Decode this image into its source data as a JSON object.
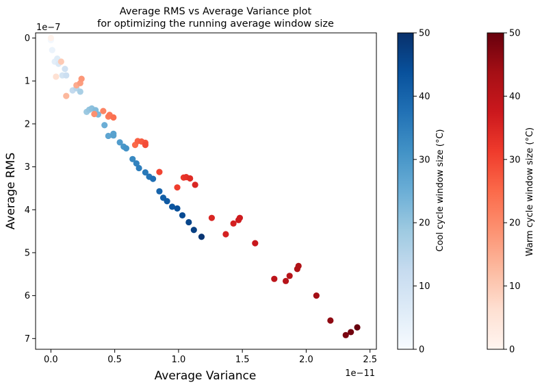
{
  "chart_data": {
    "type": "scatter",
    "title_line1": "Average RMS vs Average Variance plot",
    "title_line2": "for optimizing the running average window size",
    "xlabel": "Average Variance",
    "ylabel": "Average RMS",
    "x_multiplier": "1e−11",
    "y_multiplier": "1e−7",
    "xlim": [
      -0.12,
      2.55
    ],
    "ylim": [
      -0.12,
      7.25
    ],
    "y_inverted": true,
    "xticks": [
      0.0,
      0.5,
      1.0,
      1.5,
      2.0,
      2.5
    ],
    "xtick_labels": [
      "0.0",
      "0.5",
      "1.0",
      "1.5",
      "2.0",
      "2.5"
    ],
    "yticks": [
      0,
      1,
      2,
      3,
      4,
      5,
      6,
      7
    ],
    "ytick_labels": [
      "0",
      "1",
      "2",
      "3",
      "4",
      "5",
      "6",
      "7"
    ],
    "colorbars": [
      {
        "label": "Cool cycle window size (°C)",
        "cmap": "Blues",
        "range": [
          0,
          50
        ],
        "ticks": [
          0,
          10,
          20,
          30,
          40,
          50
        ],
        "tick_labels": [
          "0",
          "10",
          "20",
          "30",
          "40",
          "50"
        ],
        "color_stops": [
          "#f7fbff",
          "#deebf7",
          "#c6dbef",
          "#9ecae1",
          "#6baed6",
          "#4292c6",
          "#2171b5",
          "#08519c",
          "#08306b"
        ]
      },
      {
        "label": "Warm cycle window size (°C)",
        "cmap": "Reds",
        "range": [
          0,
          50
        ],
        "ticks": [
          0,
          10,
          20,
          30,
          40,
          50
        ],
        "tick_labels": [
          "0",
          "10",
          "20",
          "30",
          "40",
          "50"
        ],
        "color_stops": [
          "#fff5f0",
          "#fee0d2",
          "#fcbba1",
          "#fc9272",
          "#fb6a4a",
          "#ef3b2c",
          "#cb181d",
          "#a50f15",
          "#67000d"
        ]
      }
    ],
    "series": [
      {
        "cmap": "Blues",
        "points": [
          {
            "x": 0.0,
            "y": 0.05,
            "c": 1
          },
          {
            "x": 0.01,
            "y": 0.28,
            "c": 3
          },
          {
            "x": 0.03,
            "y": 0.55,
            "c": 5
          },
          {
            "x": 0.05,
            "y": 0.48,
            "c": 6
          },
          {
            "x": 0.06,
            "y": 0.6,
            "c": 7
          },
          {
            "x": 0.09,
            "y": 0.87,
            "c": 9
          },
          {
            "x": 0.11,
            "y": 0.72,
            "c": 10
          },
          {
            "x": 0.12,
            "y": 0.87,
            "c": 11
          },
          {
            "x": 0.17,
            "y": 1.22,
            "c": 13
          },
          {
            "x": 0.2,
            "y": 1.17,
            "c": 15
          },
          {
            "x": 0.23,
            "y": 1.25,
            "c": 17
          },
          {
            "x": 0.28,
            "y": 1.72,
            "c": 19
          },
          {
            "x": 0.3,
            "y": 1.67,
            "c": 20
          },
          {
            "x": 0.32,
            "y": 1.64,
            "c": 21
          },
          {
            "x": 0.35,
            "y": 1.68,
            "c": 22
          },
          {
            "x": 0.37,
            "y": 1.78,
            "c": 23
          },
          {
            "x": 0.42,
            "y": 2.03,
            "c": 25
          },
          {
            "x": 0.45,
            "y": 2.28,
            "c": 27
          },
          {
            "x": 0.49,
            "y": 2.27,
            "c": 28
          },
          {
            "x": 0.49,
            "y": 2.23,
            "c": 28
          },
          {
            "x": 0.54,
            "y": 2.43,
            "c": 29
          },
          {
            "x": 0.57,
            "y": 2.53,
            "c": 30
          },
          {
            "x": 0.59,
            "y": 2.57,
            "c": 31
          },
          {
            "x": 0.64,
            "y": 2.82,
            "c": 33
          },
          {
            "x": 0.67,
            "y": 2.92,
            "c": 34
          },
          {
            "x": 0.69,
            "y": 3.03,
            "c": 35
          },
          {
            "x": 0.74,
            "y": 3.13,
            "c": 36
          },
          {
            "x": 0.77,
            "y": 3.23,
            "c": 37
          },
          {
            "x": 0.8,
            "y": 3.28,
            "c": 38
          },
          {
            "x": 0.85,
            "y": 3.57,
            "c": 40
          },
          {
            "x": 0.88,
            "y": 3.72,
            "c": 41
          },
          {
            "x": 0.91,
            "y": 3.8,
            "c": 42
          },
          {
            "x": 0.95,
            "y": 3.93,
            "c": 43
          },
          {
            "x": 0.99,
            "y": 3.97,
            "c": 44
          },
          {
            "x": 1.03,
            "y": 4.13,
            "c": 45
          },
          {
            "x": 1.08,
            "y": 4.29,
            "c": 46
          },
          {
            "x": 1.12,
            "y": 4.47,
            "c": 47
          },
          {
            "x": 1.18,
            "y": 4.63,
            "c": 49
          }
        ]
      },
      {
        "cmap": "Reds",
        "points": [
          {
            "x": 0.0,
            "y": 0.0,
            "c": 1
          },
          {
            "x": 0.04,
            "y": 0.9,
            "c": 6
          },
          {
            "x": 0.08,
            "y": 0.55,
            "c": 10
          },
          {
            "x": 0.12,
            "y": 1.35,
            "c": 13
          },
          {
            "x": 0.2,
            "y": 1.1,
            "c": 15
          },
          {
            "x": 0.23,
            "y": 1.05,
            "c": 17
          },
          {
            "x": 0.24,
            "y": 0.95,
            "c": 18
          },
          {
            "x": 0.34,
            "y": 1.77,
            "c": 19
          },
          {
            "x": 0.41,
            "y": 1.7,
            "c": 21
          },
          {
            "x": 0.45,
            "y": 1.83,
            "c": 22
          },
          {
            "x": 0.46,
            "y": 1.79,
            "c": 23
          },
          {
            "x": 0.49,
            "y": 1.85,
            "c": 24
          },
          {
            "x": 0.66,
            "y": 2.49,
            "c": 25
          },
          {
            "x": 0.68,
            "y": 2.4,
            "c": 26
          },
          {
            "x": 0.71,
            "y": 2.41,
            "c": 27
          },
          {
            "x": 0.74,
            "y": 2.44,
            "c": 28
          },
          {
            "x": 0.74,
            "y": 2.49,
            "c": 29
          },
          {
            "x": 0.85,
            "y": 3.12,
            "c": 30
          },
          {
            "x": 0.99,
            "y": 3.48,
            "c": 31
          },
          {
            "x": 1.04,
            "y": 3.25,
            "c": 32
          },
          {
            "x": 1.06,
            "y": 3.24,
            "c": 33
          },
          {
            "x": 1.09,
            "y": 3.27,
            "c": 34
          },
          {
            "x": 1.13,
            "y": 3.42,
            "c": 35
          },
          {
            "x": 1.26,
            "y": 4.19,
            "c": 35
          },
          {
            "x": 1.37,
            "y": 4.57,
            "c": 36
          },
          {
            "x": 1.43,
            "y": 4.32,
            "c": 36
          },
          {
            "x": 1.47,
            "y": 4.24,
            "c": 37
          },
          {
            "x": 1.48,
            "y": 4.19,
            "c": 37
          },
          {
            "x": 1.6,
            "y": 4.78,
            "c": 38
          },
          {
            "x": 1.75,
            "y": 5.61,
            "c": 40
          },
          {
            "x": 1.84,
            "y": 5.66,
            "c": 41
          },
          {
            "x": 1.87,
            "y": 5.54,
            "c": 41
          },
          {
            "x": 1.93,
            "y": 5.38,
            "c": 42
          },
          {
            "x": 1.94,
            "y": 5.31,
            "c": 42
          },
          {
            "x": 2.08,
            "y": 6.0,
            "c": 44
          },
          {
            "x": 2.19,
            "y": 6.58,
            "c": 46
          },
          {
            "x": 2.31,
            "y": 6.92,
            "c": 48
          },
          {
            "x": 2.35,
            "y": 6.85,
            "c": 49
          },
          {
            "x": 2.4,
            "y": 6.74,
            "c": 50
          }
        ]
      }
    ]
  }
}
